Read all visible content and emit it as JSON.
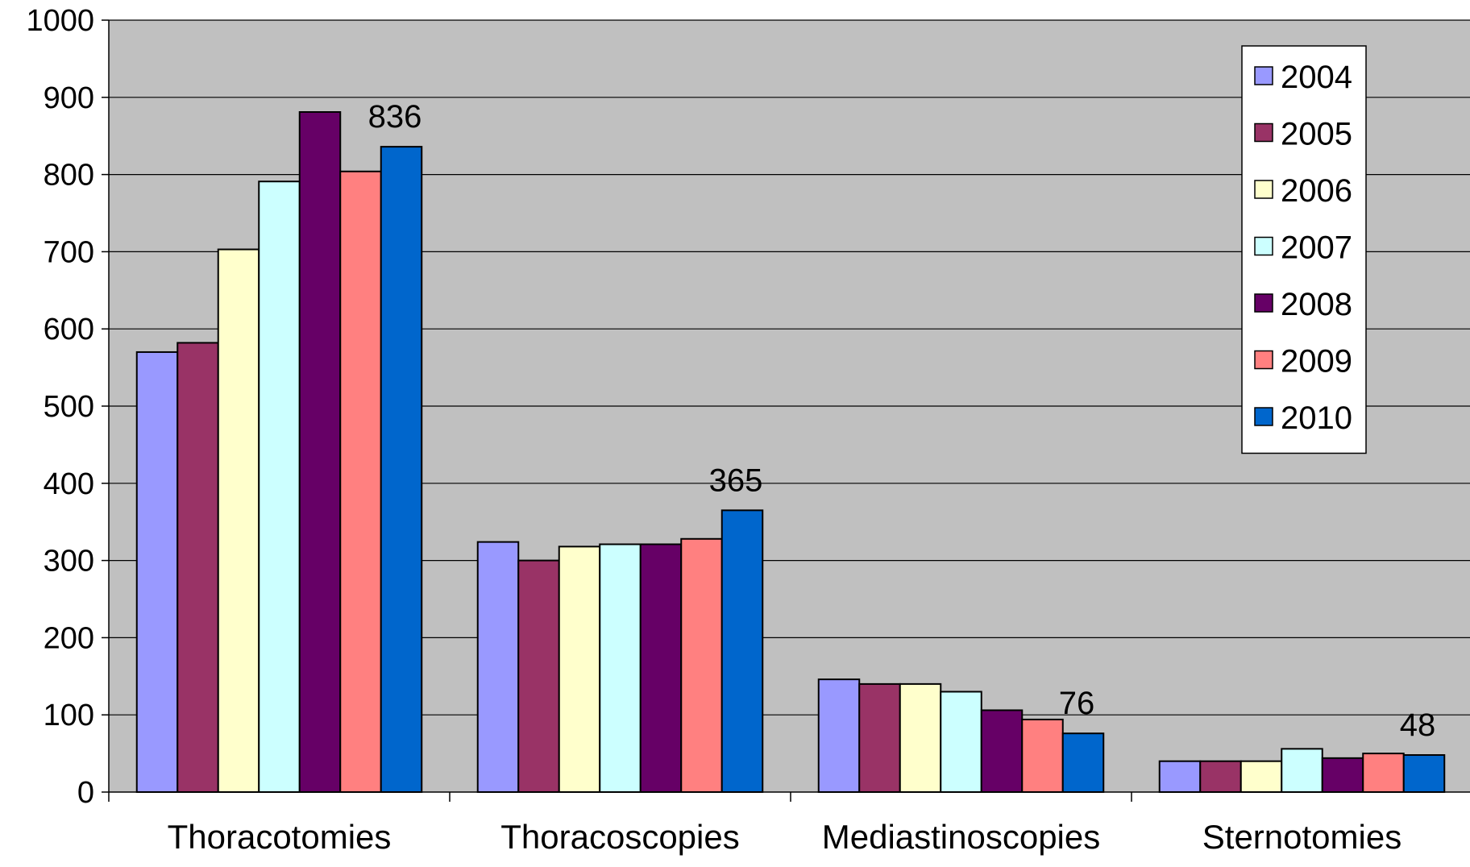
{
  "chart_data": {
    "type": "bar",
    "title": "",
    "xlabel": "",
    "ylabel": "",
    "ylim": [
      0,
      1000
    ],
    "yticks": [
      0,
      100,
      200,
      300,
      400,
      500,
      600,
      700,
      800,
      900,
      1000
    ],
    "grid": true,
    "legend_position": "top-right",
    "plot_background": "#c0c0c0",
    "categories": [
      "Thoracotomies",
      "Thoracoscopies",
      "Mediastinoscopies",
      "Sternotomies"
    ],
    "series": [
      {
        "name": "2004",
        "color": "#9999ff",
        "values": [
          570,
          324,
          146,
          40
        ]
      },
      {
        "name": "2005",
        "color": "#993366",
        "values": [
          582,
          300,
          140,
          40
        ]
      },
      {
        "name": "2006",
        "color": "#ffffcc",
        "values": [
          703,
          318,
          140,
          40
        ]
      },
      {
        "name": "2007",
        "color": "#ccffff",
        "values": [
          791,
          321,
          130,
          56
        ]
      },
      {
        "name": "2008",
        "color": "#660066",
        "values": [
          881,
          321,
          106,
          44
        ]
      },
      {
        "name": "2009",
        "color": "#ff8080",
        "values": [
          804,
          328,
          94,
          50
        ]
      },
      {
        "name": "2010",
        "color": "#0066cc",
        "values": [
          836,
          365,
          76,
          48
        ]
      }
    ],
    "data_labels": [
      {
        "category": "Thoracotomies",
        "series": "2010",
        "text": "836"
      },
      {
        "category": "Thoracoscopies",
        "series": "2010",
        "text": "365"
      },
      {
        "category": "Mediastinoscopies",
        "series": "2010",
        "text": "76"
      },
      {
        "category": "Sternotomies",
        "series": "2010",
        "text": "48"
      }
    ]
  }
}
